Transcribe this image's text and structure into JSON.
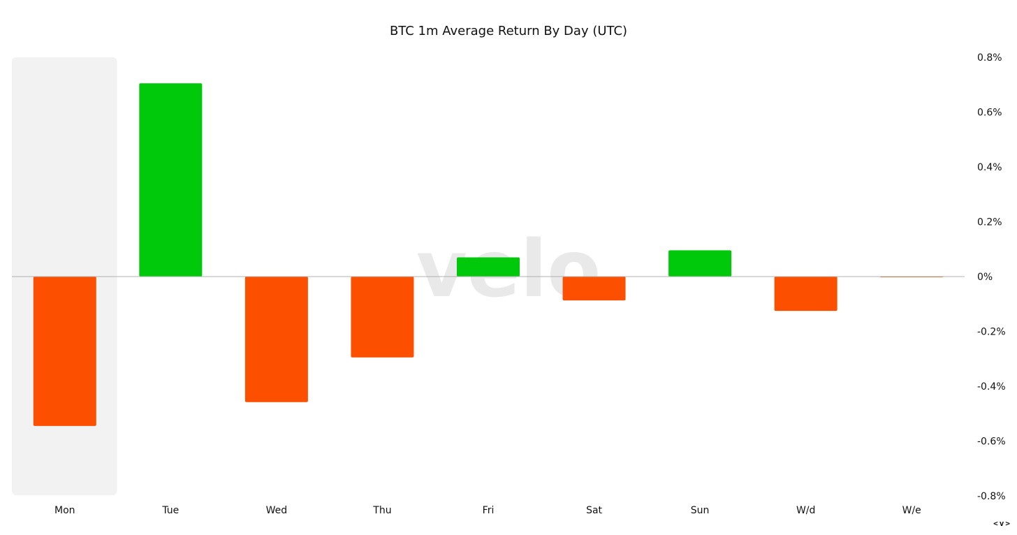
{
  "chart_data": {
    "type": "bar",
    "title": "BTC 1m Average Return By Day (UTC)",
    "categories": [
      "Mon",
      "Tue",
      "Wed",
      "Thu",
      "Fri",
      "Sat",
      "Sun",
      "W/d",
      "W/e"
    ],
    "values": [
      -0.545,
      0.705,
      -0.458,
      -0.295,
      0.07,
      -0.087,
      0.096,
      -0.125,
      -0.002
    ],
    "unit": "%",
    "ylim": [
      -0.8,
      0.8
    ],
    "yticks": [
      0.8,
      0.6,
      0.4,
      0.2,
      0,
      -0.2,
      -0.4,
      -0.6,
      -0.8
    ],
    "ytick_labels": [
      "0.8%",
      "0.6%",
      "0.4%",
      "0.2%",
      "0%",
      "-0.2%",
      "-0.4%",
      "-0.6%",
      "-0.8%"
    ],
    "y_axis_position": "right",
    "grid": false,
    "highlighted_category": "Mon",
    "colors": {
      "positive": "#00c80a",
      "negative": "#fc5000",
      "highlight_band": "#f2f2f2",
      "zero_line": "#b0b0b0",
      "watermark": "#e2e2e2"
    }
  },
  "watermark": "velo",
  "corner_nav": "<v>"
}
